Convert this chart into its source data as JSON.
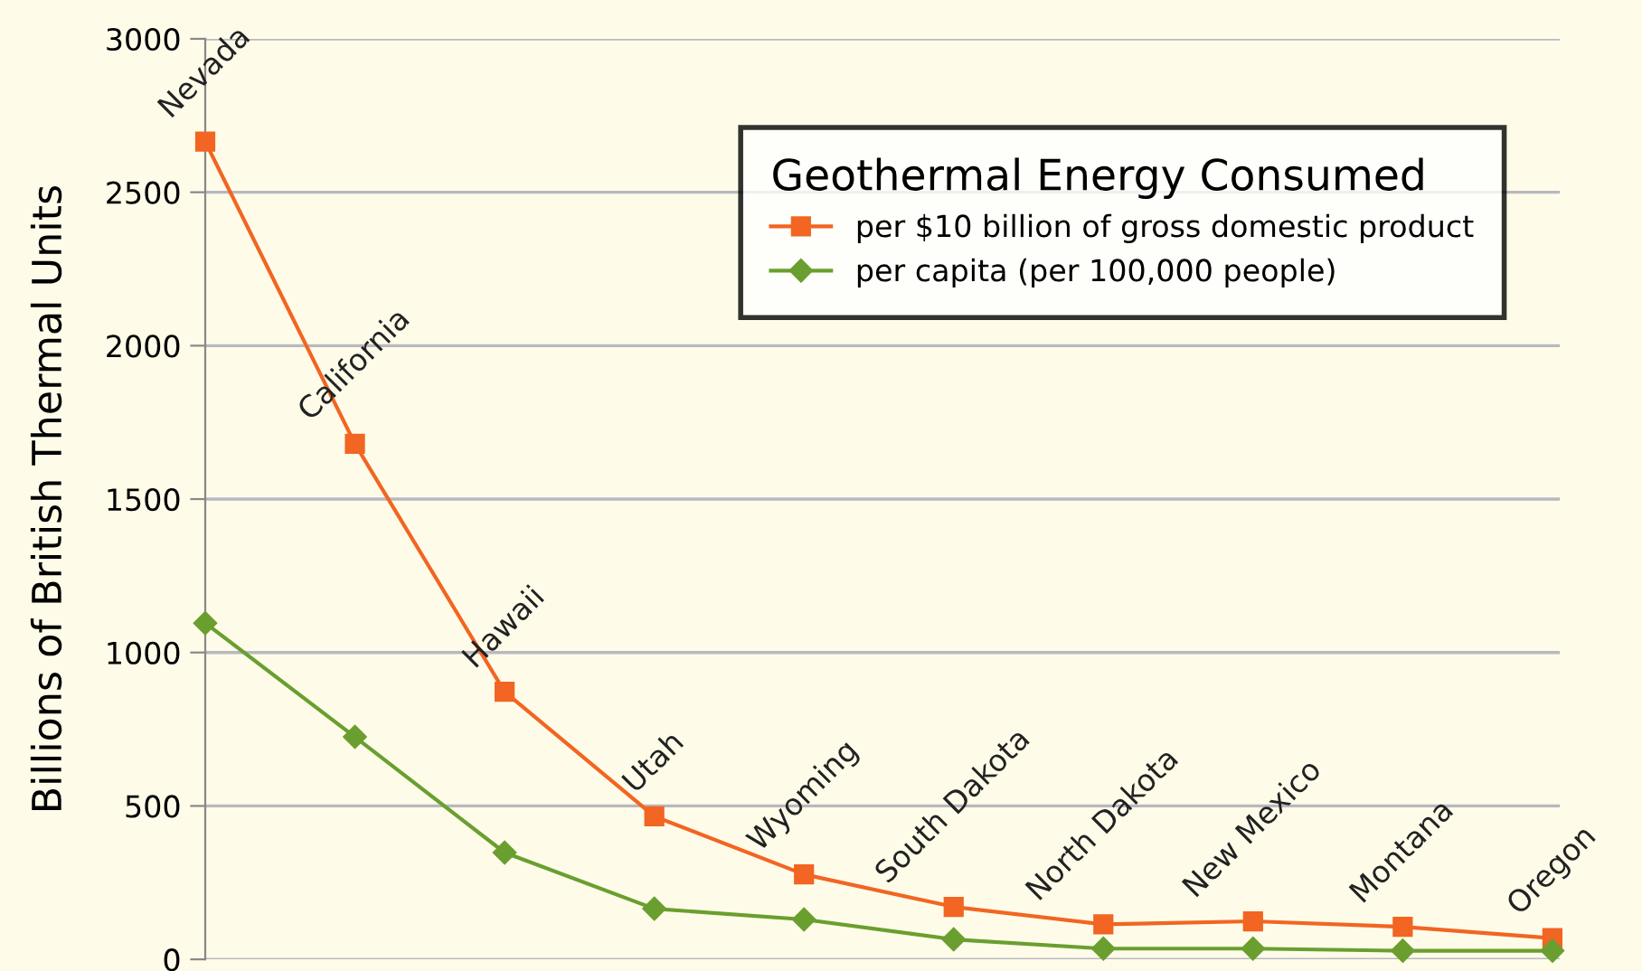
{
  "chart_data": {
    "type": "line",
    "ylabel": "Billions of British Thermal Units",
    "legend_title": "Geothermal Energy Consumed",
    "categories": [
      "Nevada",
      "California",
      "Hawaii",
      "Utah",
      "Wyoming",
      "South Dakota",
      "North Dakota",
      "New Mexico",
      "Montana",
      "Oregon"
    ],
    "series": [
      {
        "name": "per $10 billion of gross domestic product",
        "color": "#f26522",
        "marker": "square",
        "values": [
          2665,
          1680,
          872,
          466,
          277,
          171,
          114,
          124,
          106,
          69
        ]
      },
      {
        "name": "per capita (per 100,000 people)",
        "color": "#6a9f2f",
        "marker": "diamond",
        "values": [
          1096,
          725,
          348,
          165,
          130,
          65,
          35,
          35,
          28,
          28
        ]
      }
    ],
    "ylim": [
      0,
      3000
    ],
    "yticks": [
      0,
      500,
      1000,
      1500,
      2000,
      2500,
      3000
    ],
    "grid": "y",
    "legend": "top right",
    "tick_labels": "y"
  }
}
